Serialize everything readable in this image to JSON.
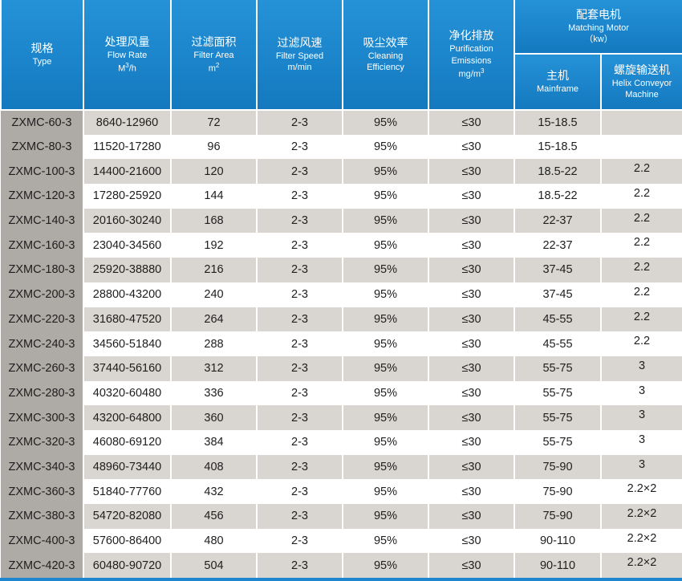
{
  "header": {
    "type": {
      "zh": "规格",
      "en": "Type"
    },
    "flow_rate": {
      "zh": "处理风量",
      "en": "Flow Rate",
      "unit": "M",
      "unit_sup": "3",
      "unit_tail": "/h"
    },
    "filter_area": {
      "zh": "过滤面积",
      "en": "Filter Area",
      "unit": "m",
      "unit_sup": "2"
    },
    "filter_speed": {
      "zh": "过滤风速",
      "en": "Filter Speed",
      "unit": "m/min"
    },
    "cleaning_efficiency": {
      "zh": "吸尘效率",
      "en_1": "Cleaning",
      "en_2": "Efficiency"
    },
    "emissions": {
      "zh": "净化排放",
      "en_1": "Purification",
      "en_2": "Emissions",
      "unit": "mg/m",
      "unit_sup": "3"
    },
    "matching_motor": {
      "zh": "配套电机",
      "en": "Matching Motor",
      "unit": "（kw）",
      "mainframe": {
        "zh": "主机",
        "en": "Mainframe"
      },
      "helix": {
        "zh": "螺旋输送机",
        "en_1": "Helix Conveyor",
        "en_2": "Machine"
      }
    }
  },
  "table": {
    "rows": [
      [
        "ZXMC-60-3",
        "8640-12960",
        "72",
        "2-3",
        "95%",
        "≤30",
        "15-18.5"
      ],
      [
        "ZXMC-80-3",
        "11520-17280",
        "96",
        "2-3",
        "95%",
        "≤30",
        "15-18.5"
      ],
      [
        "ZXMC-100-3",
        "14400-21600",
        "120",
        "2-3",
        "95%",
        "≤30",
        "18.5-22",
        "2.2"
      ],
      [
        "ZXMC-120-3",
        "17280-25920",
        "144",
        "2-3",
        "95%",
        "≤30",
        "18.5-22",
        "2.2"
      ],
      [
        "ZXMC-140-3",
        "20160-30240",
        "168",
        "2-3",
        "95%",
        "≤30",
        "22-37",
        "2.2"
      ],
      [
        "ZXMC-160-3",
        "23040-34560",
        "192",
        "2-3",
        "95%",
        "≤30",
        "22-37",
        "2.2"
      ],
      [
        "ZXMC-180-3",
        "25920-38880",
        "216",
        "2-3",
        "95%",
        "≤30",
        "37-45",
        "2.2"
      ],
      [
        "ZXMC-200-3",
        "28800-43200",
        "240",
        "2-3",
        "95%",
        "≤30",
        "37-45",
        "2.2"
      ],
      [
        "ZXMC-220-3",
        "31680-47520",
        "264",
        "2-3",
        "95%",
        "≤30",
        "45-55",
        "2.2"
      ],
      [
        "ZXMC-240-3",
        "34560-51840",
        "288",
        "2-3",
        "95%",
        "≤30",
        "45-55",
        "2.2"
      ],
      [
        "ZXMC-260-3",
        "37440-56160",
        "312",
        "2-3",
        "95%",
        "≤30",
        "55-75",
        "3"
      ],
      [
        "ZXMC-280-3",
        "40320-60480",
        "336",
        "2-3",
        "95%",
        "≤30",
        "55-75",
        "3"
      ],
      [
        "ZXMC-300-3",
        "43200-64800",
        "360",
        "2-3",
        "95%",
        "≤30",
        "55-75",
        "3"
      ],
      [
        "ZXMC-320-3",
        "46080-69120",
        "384",
        "2-3",
        "95%",
        "≤30",
        "55-75",
        "3"
      ],
      [
        "ZXMC-340-3",
        "48960-73440",
        "408",
        "2-3",
        "95%",
        "≤30",
        "75-90",
        "3"
      ],
      [
        "ZXMC-360-3",
        "51840-77760",
        "432",
        "2-3",
        "95%",
        "≤30",
        "75-90",
        "2.2×2"
      ],
      [
        "ZXMC-380-3",
        "54720-82080",
        "456",
        "2-3",
        "95%",
        "≤30",
        "75-90",
        "2.2×2"
      ],
      [
        "ZXMC-400-3",
        "57600-86400",
        "480",
        "2-3",
        "95%",
        "≤30",
        "90-110",
        "2.2×2"
      ],
      [
        "ZXMC-420-3",
        "60480-90720",
        "504",
        "2-3",
        "95%",
        "≤30",
        "90-110",
        "2.2×2"
      ]
    ]
  }
}
